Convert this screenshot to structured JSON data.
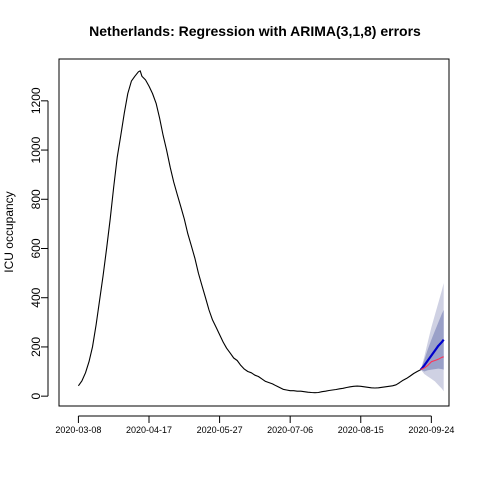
{
  "chart_data": {
    "type": "line",
    "title": "Netherlands: Regression with ARIMA(3,1,8) errors",
    "xlabel": "",
    "ylabel": "ICU occupancy",
    "x_type": "date",
    "xlim": [
      "2020-02-26",
      "2020-10-04"
    ],
    "ylim": [
      -40,
      1370
    ],
    "grid": false,
    "legend": "none",
    "x_ticks": [
      "2020-03-08",
      "2020-04-17",
      "2020-05-27",
      "2020-07-06",
      "2020-08-15",
      "2020-09-24"
    ],
    "y_ticks": [
      0,
      200,
      400,
      600,
      800,
      1000,
      1200
    ],
    "colors": {
      "observed": "#000000",
      "forecast_mean": "#0000cc",
      "actual_after": "#ff3355",
      "band_80": "#9aa0c8",
      "band_95": "#cfd1e3"
    },
    "series": [
      {
        "role": "observed",
        "color": "#000000",
        "points": [
          [
            "2020-03-08",
            42
          ],
          [
            "2020-03-10",
            62
          ],
          [
            "2020-03-12",
            95
          ],
          [
            "2020-03-14",
            140
          ],
          [
            "2020-03-16",
            200
          ],
          [
            "2020-03-18",
            290
          ],
          [
            "2020-03-20",
            390
          ],
          [
            "2020-03-22",
            490
          ],
          [
            "2020-03-24",
            600
          ],
          [
            "2020-03-26",
            720
          ],
          [
            "2020-03-28",
            850
          ],
          [
            "2020-03-30",
            970
          ],
          [
            "2020-04-01",
            1060
          ],
          [
            "2020-04-03",
            1150
          ],
          [
            "2020-04-05",
            1230
          ],
          [
            "2020-04-07",
            1280
          ],
          [
            "2020-04-09",
            1300
          ],
          [
            "2020-04-11",
            1318
          ],
          [
            "2020-04-12",
            1322
          ],
          [
            "2020-04-13",
            1300
          ],
          [
            "2020-04-15",
            1285
          ],
          [
            "2020-04-17",
            1260
          ],
          [
            "2020-04-19",
            1230
          ],
          [
            "2020-04-21",
            1190
          ],
          [
            "2020-04-23",
            1130
          ],
          [
            "2020-04-25",
            1060
          ],
          [
            "2020-04-27",
            1000
          ],
          [
            "2020-04-29",
            930
          ],
          [
            "2020-05-01",
            870
          ],
          [
            "2020-05-03",
            820
          ],
          [
            "2020-05-05",
            770
          ],
          [
            "2020-05-07",
            720
          ],
          [
            "2020-05-09",
            660
          ],
          [
            "2020-05-11",
            610
          ],
          [
            "2020-05-13",
            560
          ],
          [
            "2020-05-15",
            500
          ],
          [
            "2020-05-17",
            450
          ],
          [
            "2020-05-19",
            400
          ],
          [
            "2020-05-21",
            350
          ],
          [
            "2020-05-23",
            310
          ],
          [
            "2020-05-25",
            280
          ],
          [
            "2020-05-27",
            250
          ],
          [
            "2020-05-29",
            220
          ],
          [
            "2020-05-31",
            195
          ],
          [
            "2020-06-02",
            175
          ],
          [
            "2020-06-04",
            155
          ],
          [
            "2020-06-06",
            145
          ],
          [
            "2020-06-08",
            125
          ],
          [
            "2020-06-10",
            110
          ],
          [
            "2020-06-12",
            100
          ],
          [
            "2020-06-14",
            95
          ],
          [
            "2020-06-16",
            85
          ],
          [
            "2020-06-18",
            80
          ],
          [
            "2020-06-20",
            70
          ],
          [
            "2020-06-22",
            60
          ],
          [
            "2020-06-24",
            55
          ],
          [
            "2020-06-26",
            50
          ],
          [
            "2020-06-28",
            42
          ],
          [
            "2020-06-30",
            35
          ],
          [
            "2020-07-02",
            28
          ],
          [
            "2020-07-04",
            25
          ],
          [
            "2020-07-06",
            22
          ],
          [
            "2020-07-08",
            22
          ],
          [
            "2020-07-10",
            20
          ],
          [
            "2020-07-12",
            20
          ],
          [
            "2020-07-14",
            18
          ],
          [
            "2020-07-16",
            16
          ],
          [
            "2020-07-18",
            15
          ],
          [
            "2020-07-20",
            14
          ],
          [
            "2020-07-22",
            15
          ],
          [
            "2020-07-24",
            18
          ],
          [
            "2020-07-26",
            20
          ],
          [
            "2020-07-28",
            23
          ],
          [
            "2020-07-30",
            25
          ],
          [
            "2020-08-01",
            27
          ],
          [
            "2020-08-03",
            30
          ],
          [
            "2020-08-05",
            32
          ],
          [
            "2020-08-07",
            35
          ],
          [
            "2020-08-09",
            38
          ],
          [
            "2020-08-11",
            40
          ],
          [
            "2020-08-13",
            41
          ],
          [
            "2020-08-15",
            40
          ],
          [
            "2020-08-17",
            38
          ],
          [
            "2020-08-19",
            36
          ],
          [
            "2020-08-21",
            34
          ],
          [
            "2020-08-23",
            33
          ],
          [
            "2020-08-25",
            34
          ],
          [
            "2020-08-27",
            36
          ],
          [
            "2020-08-29",
            38
          ],
          [
            "2020-08-31",
            40
          ],
          [
            "2020-09-02",
            42
          ],
          [
            "2020-09-04",
            46
          ],
          [
            "2020-09-06",
            55
          ],
          [
            "2020-09-08",
            65
          ],
          [
            "2020-09-10",
            72
          ],
          [
            "2020-09-12",
            82
          ],
          [
            "2020-09-14",
            92
          ],
          [
            "2020-09-16",
            100
          ],
          [
            "2020-09-18",
            108
          ]
        ]
      },
      {
        "role": "forecast_mean",
        "color": "#0000cc",
        "points": [
          [
            "2020-09-18",
            108
          ],
          [
            "2020-09-20",
            125
          ],
          [
            "2020-09-22",
            145
          ],
          [
            "2020-09-24",
            165
          ],
          [
            "2020-09-26",
            185
          ],
          [
            "2020-09-28",
            205
          ],
          [
            "2020-09-30",
            220
          ],
          [
            "2020-10-01",
            230
          ]
        ]
      },
      {
        "role": "actual_after",
        "color": "#ff3355",
        "points": [
          [
            "2020-09-18",
            108
          ],
          [
            "2020-09-20",
            115
          ],
          [
            "2020-09-22",
            125
          ],
          [
            "2020-09-24",
            140
          ],
          [
            "2020-09-26",
            145
          ],
          [
            "2020-09-28",
            150
          ],
          [
            "2020-09-30",
            158
          ],
          [
            "2020-10-01",
            160
          ]
        ]
      }
    ],
    "bands": [
      {
        "level": "95",
        "color": "#cfd1e3",
        "points": [
          [
            "2020-09-18",
            108,
            108
          ],
          [
            "2020-09-20",
            90,
            160
          ],
          [
            "2020-09-22",
            80,
            220
          ],
          [
            "2020-09-24",
            70,
            280
          ],
          [
            "2020-09-26",
            60,
            330
          ],
          [
            "2020-09-28",
            45,
            380
          ],
          [
            "2020-09-30",
            30,
            430
          ],
          [
            "2020-10-01",
            20,
            460
          ]
        ]
      },
      {
        "level": "80",
        "color": "#9aa0c8",
        "points": [
          [
            "2020-09-18",
            108,
            108
          ],
          [
            "2020-09-20",
            100,
            148
          ],
          [
            "2020-09-22",
            105,
            190
          ],
          [
            "2020-09-24",
            108,
            230
          ],
          [
            "2020-09-26",
            110,
            265
          ],
          [
            "2020-09-28",
            112,
            300
          ],
          [
            "2020-09-30",
            110,
            335
          ],
          [
            "2020-10-01",
            108,
            350
          ]
        ]
      }
    ]
  }
}
